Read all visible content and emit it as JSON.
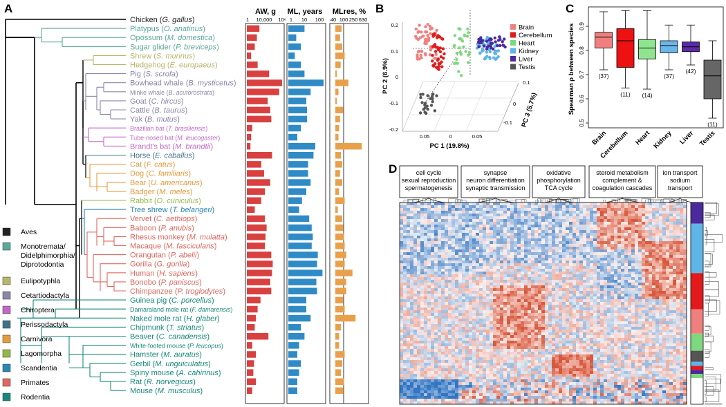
{
  "panels": {
    "a": "A",
    "b": "B",
    "c": "C",
    "d": "D"
  },
  "colors": {
    "Aves": "#222222",
    "Monotremata": "#5aa89a",
    "Eulipotyphla": "#b8b66a",
    "Cetartiodactyla": "#8a86a8",
    "Chiroptera": "#c267c8",
    "Perissodactyla": "#3f7289",
    "Carnivora": "#e59a3b",
    "Lagomorpha": "#93b84a",
    "Scandentia": "#2b86b5",
    "Primates": "#e0665e",
    "Rodentia": "#17897a",
    "aw_bar": "#d94040",
    "ml_bar": "#2f8bc6",
    "mlres_bar": "#e9a04a"
  },
  "legend": [
    {
      "label": "Aves",
      "group": "Aves"
    },
    {
      "label": "Monotremata/\nDidelphimorphia/\nDiprotodontia",
      "group": "Monotremata"
    },
    {
      "label": "Eulipotyphla",
      "group": "Eulipotyphla"
    },
    {
      "label": "Cetartiodactyla",
      "group": "Cetartiodactyla"
    },
    {
      "label": "Chiroptera",
      "group": "Chiroptera"
    },
    {
      "label": "Perissodactyla",
      "group": "Perissodactyla"
    },
    {
      "label": "Carnivora",
      "group": "Carnivora"
    },
    {
      "label": "Lagomorpha",
      "group": "Lagomorpha"
    },
    {
      "label": "Scandentia",
      "group": "Scandentia"
    },
    {
      "label": "Primates",
      "group": "Primates"
    },
    {
      "label": "Rodentia",
      "group": "Rodentia"
    }
  ],
  "bar_columns": {
    "aw": {
      "title": "AW, g",
      "ticks": [
        "1",
        "10,000",
        "10⁶"
      ]
    },
    "ml": {
      "title": "ML, years",
      "ticks": [
        "1",
        "10",
        "100"
      ]
    },
    "mlres": {
      "title": "MLres, %",
      "ticks": [
        "40",
        "100",
        "250",
        "630"
      ]
    }
  },
  "species": [
    {
      "common": "Chicken",
      "sci": "G. gallus",
      "group": "Aves",
      "aw": 0,
      "ml": 0,
      "mlres": 0
    },
    {
      "common": "Platypus",
      "sci": "O. anatinus",
      "group": "Monotremata",
      "aw": 0.35,
      "ml": 0.45,
      "mlres": 0.2
    },
    {
      "common": "Opossum",
      "sci": "M. domestica",
      "group": "Monotremata",
      "aw": 0.28,
      "ml": 0.22,
      "mlres": 0.15
    },
    {
      "common": "Sugar glider",
      "sci": "P. breviceps",
      "group": "Monotremata",
      "aw": 0.22,
      "ml": 0.35,
      "mlres": 0.22
    },
    {
      "common": "Shrew",
      "sci": "S. murinus",
      "group": "Eulipotyphla",
      "aw": 0.12,
      "ml": 0.18,
      "mlres": 0.3
    },
    {
      "common": "Hedgehog",
      "sci": "E. europaeus",
      "group": "Eulipotyphla",
      "aw": 0.3,
      "ml": 0.35,
      "mlres": 0.17
    },
    {
      "common": "Pig",
      "sci": "S. scrofa",
      "group": "Cetartiodactyla",
      "aw": 0.62,
      "ml": 0.45,
      "mlres": 0.05
    },
    {
      "common": "Bowhead whale",
      "sci": "B. mysticetus",
      "group": "Cetartiodactyla",
      "aw": 0.98,
      "ml": 0.98,
      "mlres": 0.42
    },
    {
      "common": "Minke whale",
      "sci": "B. acutorostrata",
      "group": "Cetartiodactyla",
      "aw": 0.9,
      "ml": 0.62,
      "mlres": 0.1
    },
    {
      "common": "Goat",
      "sci": "C. hircus",
      "group": "Cetartiodactyla",
      "aw": 0.58,
      "ml": 0.5,
      "mlres": 0.05
    },
    {
      "common": "Cattle",
      "sci": "B. taurus",
      "group": "Cetartiodactyla",
      "aw": 0.65,
      "ml": 0.52,
      "mlres": 0.25
    },
    {
      "common": "Yak",
      "sci": "B. mutus",
      "group": "Cetartiodactyla",
      "aw": 0.68,
      "ml": 0.52,
      "mlres": 0.15
    },
    {
      "common": "Brazilian bat",
      "sci": "T. brasiliensis",
      "group": "Chiroptera",
      "aw": 0.15,
      "ml": 0.35,
      "mlres": 0.12
    },
    {
      "common": "Tube-nosed bat",
      "sci": "M. leucogaster",
      "group": "Chiroptera",
      "aw": 0.12,
      "ml": 0.25,
      "mlres": 0.1
    },
    {
      "common": "Brandt's bat",
      "sci": "M. brandtii",
      "group": "Chiroptera",
      "aw": 0.1,
      "ml": 0.75,
      "mlres": 0.85
    },
    {
      "common": "Horse",
      "sci": "E. caballus",
      "group": "Perissodactyla",
      "aw": 0.7,
      "ml": 0.7,
      "mlres": 0.18
    },
    {
      "common": "Cat",
      "sci": "F. catus",
      "group": "Carnivora",
      "aw": 0.4,
      "ml": 0.55,
      "mlres": 0.22
    },
    {
      "common": "Dog",
      "sci": "C. familiaris",
      "group": "Carnivora",
      "aw": 0.48,
      "ml": 0.55,
      "mlres": 0.15
    },
    {
      "common": "Bear",
      "sci": "U. americanus",
      "group": "Carnivora",
      "aw": 0.65,
      "ml": 0.62,
      "mlres": 0.22
    },
    {
      "common": "Badger",
      "sci": "M. meles",
      "group": "Carnivora",
      "aw": 0.5,
      "ml": 0.5,
      "mlres": 0.12
    },
    {
      "common": "Rabbit",
      "sci": "O. cuniculus",
      "group": "Lagomorpha",
      "aw": 0.4,
      "ml": 0.38,
      "mlres": 0.3
    },
    {
      "common": "Tree shrew",
      "sci": "T. belangeri",
      "group": "Scandentia",
      "aw": 0.22,
      "ml": 0.3,
      "mlres": 0.08
    },
    {
      "common": "Vervet",
      "sci": "C. aethiops",
      "group": "Primates",
      "aw": 0.5,
      "ml": 0.58,
      "mlres": 0.22
    },
    {
      "common": "Baboon",
      "sci": "P. anubis",
      "group": "Primates",
      "aw": 0.55,
      "ml": 0.65,
      "mlres": 0.25
    },
    {
      "common": "Rhesus monkey",
      "sci": "M. mulatta",
      "group": "Primates",
      "aw": 0.52,
      "ml": 0.68,
      "mlres": 0.28
    },
    {
      "common": "Macaque",
      "sci": "M. fascicularis",
      "group": "Primates",
      "aw": 0.5,
      "ml": 0.65,
      "mlres": 0.3
    },
    {
      "common": "Orangutan",
      "sci": "P. abelii",
      "group": "Primates",
      "aw": 0.68,
      "ml": 0.82,
      "mlres": 0.35
    },
    {
      "common": "Gorilla",
      "sci": "G. gorilla",
      "group": "Primates",
      "aw": 0.72,
      "ml": 0.8,
      "mlres": 0.3
    },
    {
      "common": "Human",
      "sci": "H. sapiens",
      "group": "Primates",
      "aw": 0.7,
      "ml": 0.95,
      "mlres": 0.55
    },
    {
      "common": "Bonobo",
      "sci": "P. paniscus",
      "group": "Primates",
      "aw": 0.65,
      "ml": 0.78,
      "mlres": 0.35
    },
    {
      "common": "Chimpanzee",
      "sci": "P. troglodytes",
      "group": "Primates",
      "aw": 0.68,
      "ml": 0.8,
      "mlres": 0.35
    },
    {
      "common": "Guinea pig",
      "sci": "C. porcellus",
      "group": "Rodentia",
      "aw": 0.38,
      "ml": 0.5,
      "mlres": 0.25
    },
    {
      "common": "Damaraland mole rat",
      "sci": "F. damarensis",
      "group": "Rodentia",
      "aw": 0.3,
      "ml": 0.5,
      "mlres": 0.3
    },
    {
      "common": "Naked mole rat",
      "sci": "H. glaber",
      "group": "Rodentia",
      "aw": 0.25,
      "ml": 0.62,
      "mlres": 0.65
    },
    {
      "common": "Chipmunk",
      "sci": "T. striatus",
      "group": "Rodentia",
      "aw": 0.22,
      "ml": 0.35,
      "mlres": 0.18
    },
    {
      "common": "Beaver",
      "sci": "C. canadensis",
      "group": "Rodentia",
      "aw": 0.6,
      "ml": 0.45,
      "mlres": 0.12
    },
    {
      "common": "White-footed mouse",
      "sci": "P. leucopus",
      "group": "Rodentia",
      "aw": 0.15,
      "ml": 0.3,
      "mlres": 0.12
    },
    {
      "common": "Hamster",
      "sci": "M. auratus",
      "group": "Rodentia",
      "aw": 0.25,
      "ml": 0.25,
      "mlres": 0.3
    },
    {
      "common": "Gerbil",
      "sci": "M. unguiculatus",
      "group": "Rodentia",
      "aw": 0.2,
      "ml": 0.35,
      "mlres": 0.22
    },
    {
      "common": "Spiny mouse",
      "sci": "A. cahirinus",
      "group": "Rodentia",
      "aw": 0.18,
      "ml": 0.3,
      "mlres": 0.18
    },
    {
      "common": "Rat",
      "sci": "R. norvegicus",
      "group": "Rodentia",
      "aw": 0.25,
      "ml": 0.25,
      "mlres": 0.28
    },
    {
      "common": "Mouse",
      "sci": "M. musculus",
      "group": "Rodentia",
      "aw": 0.15,
      "ml": 0.25,
      "mlres": 0.25
    }
  ],
  "pca": {
    "xlabel": "PC 1 (19.8%)",
    "ylabel": "PC 2 (6.9%)",
    "zlabel": "PC 3 (5.7%)",
    "yticks": [
      "0.2",
      "0.1",
      "0",
      "-0.1",
      "-0.2"
    ],
    "xticks": [
      "0.05",
      "0",
      "0.05"
    ],
    "zticks": [
      "0.1",
      "0",
      "-0.1"
    ],
    "legend": [
      {
        "label": "Brain",
        "color": "#f08080"
      },
      {
        "label": "Cerebellum",
        "color": "#e31a1c"
      },
      {
        "label": "Heart",
        "color": "#7ed87e"
      },
      {
        "label": "Kidney",
        "color": "#5fb4e8"
      },
      {
        "label": "Liver",
        "color": "#4b2a9e"
      },
      {
        "label": "Testis",
        "color": "#555555"
      }
    ]
  },
  "chart_data": {
    "type": "box",
    "ylabel": "Spearman ρ between species",
    "yticks": [
      "0.9",
      "0.8",
      "0.7",
      "0.6",
      "0.5"
    ],
    "ylim": [
      0.48,
      0.98
    ],
    "categories": [
      "Brain",
      "Cerebellum",
      "Heart",
      "Kidney",
      "Liver",
      "Testis"
    ],
    "colors": [
      "#f08080",
      "#ee1111",
      "#8fe58f",
      "#6ab8ea",
      "#5a2aa8",
      "#666666"
    ],
    "boxes": [
      {
        "name": "Brain",
        "whislo": 0.72,
        "q1": 0.81,
        "med": 0.855,
        "q3": 0.875,
        "whishi": 0.96,
        "n": "(37)"
      },
      {
        "name": "Cerebellum",
        "whislo": 0.645,
        "q1": 0.73,
        "med": 0.84,
        "q3": 0.89,
        "whishi": 0.965,
        "n": "(11)"
      },
      {
        "name": "Heart",
        "whislo": 0.64,
        "q1": 0.765,
        "med": 0.81,
        "q3": 0.845,
        "whishi": 0.965,
        "n": "(14)"
      },
      {
        "name": "Kidney",
        "whislo": 0.72,
        "q1": 0.79,
        "med": 0.82,
        "q3": 0.84,
        "whishi": 0.905,
        "n": "(37)"
      },
      {
        "name": "Liver",
        "whislo": 0.74,
        "q1": 0.795,
        "med": 0.815,
        "q3": 0.835,
        "whishi": 0.905,
        "n": "(42)"
      },
      {
        "name": "Testis",
        "whislo": 0.52,
        "q1": 0.6,
        "med": 0.695,
        "q3": 0.76,
        "whishi": 0.84,
        "n": "(11)"
      }
    ]
  },
  "heatmap": {
    "labels": [
      {
        "lines": [
          "cell cycle",
          "sexual reproduction",
          "spermatogenesis"
        ]
      },
      {
        "lines": [
          "synapse",
          "neuron differentiation",
          "synaptic transmission"
        ]
      },
      {
        "lines": [
          "oxidative",
          "phosphorylation",
          "TCA cycle"
        ]
      },
      {
        "lines": [
          "steroid metabolism",
          "complement &",
          "coagulation cascades"
        ]
      },
      {
        "lines": [
          "ion transport",
          "sodium",
          "transport"
        ]
      }
    ],
    "sidebar": [
      {
        "color": "#4b2a9e",
        "frac": 0.105
      },
      {
        "color": "#5fb4e8",
        "frac": 0.245
      },
      {
        "color": "#e31a1c",
        "frac": 0.18
      },
      {
        "color": "#f08080",
        "frac": 0.12
      },
      {
        "color": "#7ed87e",
        "frac": 0.085
      },
      {
        "color": "#555555",
        "frac": 0.055
      },
      {
        "color": "#5fb4e8",
        "frac": 0.02
      },
      {
        "color": "#e31a1c",
        "frac": 0.02
      },
      {
        "color": "#4b2a9e",
        "frac": 0.02
      },
      {
        "color": "#7ed87e",
        "frac": 0.02
      }
    ]
  }
}
